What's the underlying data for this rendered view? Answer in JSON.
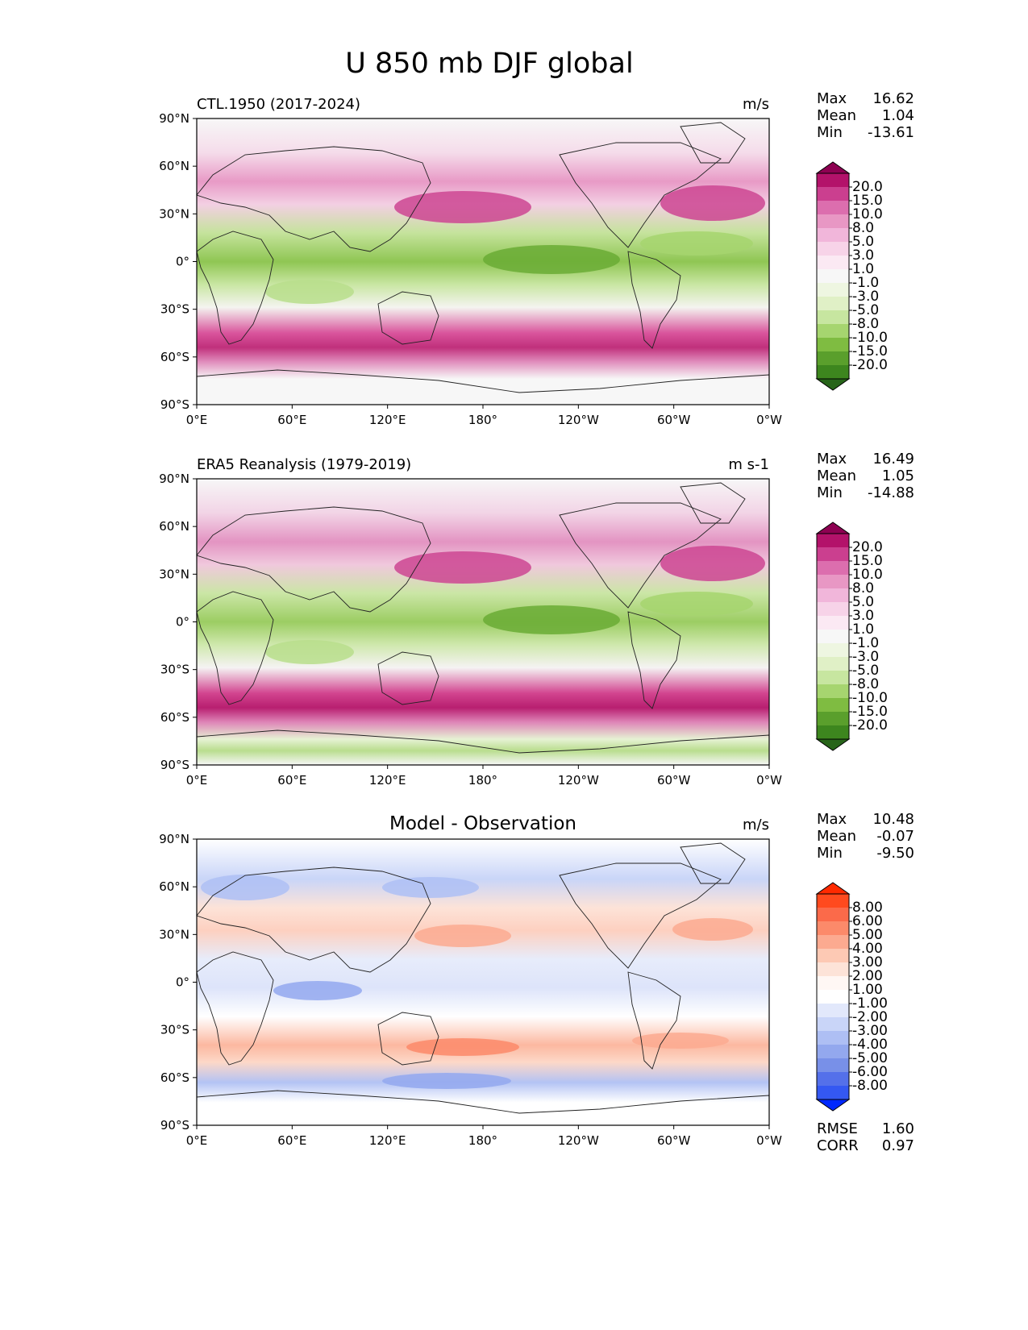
{
  "figure": {
    "title": "U 850 mb DJF global",
    "lat_ticks": [
      "90°N",
      "60°N",
      "30°N",
      "0°",
      "30°S",
      "60°S",
      "90°S"
    ],
    "lon_ticks": [
      "0°E",
      "60°E",
      "120°E",
      "180°",
      "120°W",
      "60°W",
      "0°W"
    ]
  },
  "panels": [
    {
      "id": "model",
      "title_left": "CTL.1950 (2017-2024)",
      "title_center": "",
      "units": "m/s",
      "stats": [
        {
          "label": "Max",
          "value": "16.62"
        },
        {
          "label": "Mean",
          "value": "1.04"
        },
        {
          "label": "Min",
          "value": "-13.61"
        }
      ],
      "colorbar": {
        "labels": [
          "20.0",
          "15.0",
          "10.0",
          "8.0",
          "5.0",
          "3.0",
          "1.0",
          "-1.0",
          "-3.0",
          "-5.0",
          "-8.0",
          "-10.0",
          "-15.0",
          "-20.0"
        ],
        "colors": [
          "#8e0152",
          "#b3126a",
          "#cb3f8f",
          "#dc6eae",
          "#e897c4",
          "#f1b6da",
          "#f7d3e8",
          "#fbe9f3",
          "#f7f7f7",
          "#eef6e1",
          "#e0f0c6",
          "#c7e6a0",
          "#a6d56f",
          "#7fbc41",
          "#5a9f2c",
          "#3d861e",
          "#276419"
        ]
      },
      "extra_stats": []
    },
    {
      "id": "obs",
      "title_left": "ERA5 Reanalysis (1979-2019)",
      "title_center": "",
      "units": "m s-1",
      "stats": [
        {
          "label": "Max",
          "value": "16.49"
        },
        {
          "label": "Mean",
          "value": "1.05"
        },
        {
          "label": "Min",
          "value": "-14.88"
        }
      ],
      "colorbar": {
        "labels": [
          "20.0",
          "15.0",
          "10.0",
          "8.0",
          "5.0",
          "3.0",
          "1.0",
          "-1.0",
          "-3.0",
          "-5.0",
          "-8.0",
          "-10.0",
          "-15.0",
          "-20.0"
        ],
        "colors": [
          "#8e0152",
          "#b3126a",
          "#cb3f8f",
          "#dc6eae",
          "#e897c4",
          "#f1b6da",
          "#f7d3e8",
          "#fbe9f3",
          "#f7f7f7",
          "#eef6e1",
          "#e0f0c6",
          "#c7e6a0",
          "#a6d56f",
          "#7fbc41",
          "#5a9f2c",
          "#3d861e",
          "#276419"
        ]
      },
      "extra_stats": []
    },
    {
      "id": "diff",
      "title_left": "",
      "title_center": "Model - Observation",
      "units": "m/s",
      "stats": [
        {
          "label": "Max",
          "value": "10.48"
        },
        {
          "label": "Mean",
          "value": "-0.07"
        },
        {
          "label": "Min",
          "value": "-9.50"
        }
      ],
      "colorbar": {
        "labels": [
          "8.00",
          "6.00",
          "5.00",
          "4.00",
          "3.00",
          "2.00",
          "1.00",
          "-1.00",
          "-2.00",
          "-3.00",
          "-4.00",
          "-5.00",
          "-6.00",
          "-8.00"
        ],
        "colors": [
          "#ff2a00",
          "#ff4a1e",
          "#fb6a4a",
          "#fc8a6a",
          "#fcaa90",
          "#fdc9b4",
          "#fde3d8",
          "#fff7f4",
          "#ffffff",
          "#e2e8fb",
          "#c9d5f8",
          "#aebff4",
          "#93a8ee",
          "#7890e8",
          "#5470ea",
          "#3458f2",
          "#0028ff"
        ]
      },
      "extra_stats": [
        {
          "label": "RMSE",
          "value": "1.60"
        },
        {
          "label": "CORR",
          "value": "0.97"
        }
      ]
    }
  ]
}
